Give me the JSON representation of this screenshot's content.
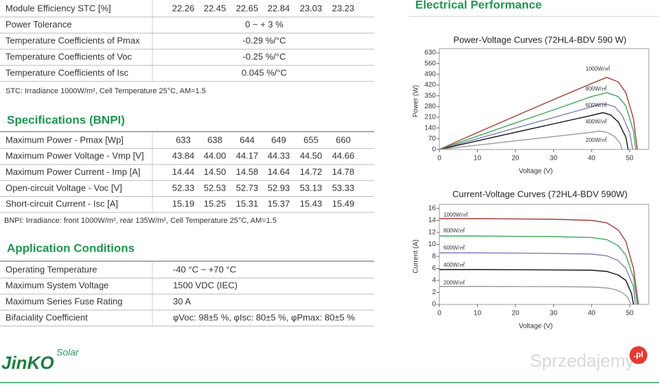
{
  "stc_table": {
    "rows": [
      [
        "Module Efficiency STC  [%]",
        "22.26",
        "22.45",
        "22.65",
        "22.84",
        "23.03",
        "23.23"
      ],
      [
        "Power Tolerance",
        "0 ~ + 3 %"
      ],
      [
        "Temperature Coefficients of Pmax",
        "-0.29 %/°C"
      ],
      [
        "Temperature Coefficients of Voc",
        "-0.25 %/°C"
      ],
      [
        "Temperature Coefficients of Isc",
        "0.045 %/°C"
      ]
    ],
    "note": "STC: Irradiance 1000W/m², Cell Temperature 25°C, AM=1.5"
  },
  "bnpi": {
    "title": "Specifications (BNPI)",
    "rows": [
      [
        "Maximum Power - Pmax  [Wp]",
        "633",
        "638",
        "644",
        "649",
        "655",
        "660"
      ],
      [
        "Maximum Power Voltage - Vmp  [V]",
        "43.84",
        "44.00",
        "44.17",
        "44.33",
        "44.50",
        "44.66"
      ],
      [
        "Maximum Power Current - Imp  [A]",
        "14.44",
        "14.50",
        "14.58",
        "14.64",
        "14.72",
        "14.78"
      ],
      [
        "Open-circuit Voltage - Voc  [V]",
        "52.33",
        "52.53",
        "52.73",
        "52.93",
        "53.13",
        "53.33"
      ],
      [
        "Short-circuit Current - Isc  [A]",
        "15.19",
        "15.25",
        "15.31",
        "15.37",
        "15.43",
        "15.49"
      ]
    ],
    "note": "BNPI: Irradiance: front 1000W/m², rear 135W/m², Cell Temperature 25°C, AM=1.5"
  },
  "application": {
    "title": "Application Conditions",
    "rows": [
      [
        "Operating Temperature",
        "-40 °C ~ +70 °C"
      ],
      [
        "Maximum System Voltage",
        "1500 VDC (IEC)"
      ],
      [
        "Maximum Series Fuse Rating",
        "30 A"
      ],
      [
        "Bifaciality Coefficient",
        "φVoc: 98±5 %, φIsc: 80±5 %, φPmax: 80±5 %"
      ]
    ]
  },
  "electrical": {
    "title": "Electrical Performance"
  },
  "chart_data": [
    {
      "type": "line",
      "title": "Power-Voltage Curves (72HL4-BDV 590 W)",
      "xlabel": "Voltage (V)",
      "ylabel": "Power (W)",
      "xlim": [
        0,
        55
      ],
      "xticks": [
        0,
        10,
        20,
        30,
        40,
        50
      ],
      "ylim": [
        0,
        630
      ],
      "yticks": [
        0,
        70,
        140,
        210,
        280,
        350,
        420,
        490,
        560,
        630
      ],
      "series": [
        {
          "name": "1000W/㎡",
          "color": "#a33a35",
          "x": [
            0,
            10,
            20,
            30,
            40,
            44,
            47,
            49,
            51,
            52
          ],
          "values": [
            0,
            110,
            218,
            325,
            430,
            470,
            440,
            370,
            200,
            0
          ]
        },
        {
          "name": "800W/㎡",
          "color": "#3ea95a",
          "x": [
            0,
            10,
            20,
            30,
            40,
            44,
            47,
            49,
            51,
            51.6
          ],
          "values": [
            0,
            87,
            173,
            258,
            345,
            370,
            345,
            285,
            120,
            0
          ]
        },
        {
          "name": "600W/㎡",
          "color": "#7d80b8",
          "x": [
            0,
            10,
            20,
            30,
            40,
            43,
            46,
            48,
            50,
            50.8
          ],
          "values": [
            0,
            70,
            140,
            208,
            278,
            300,
            280,
            225,
            110,
            0
          ]
        },
        {
          "name": "400W/㎡",
          "color": "#111111",
          "x": [
            0,
            10,
            20,
            30,
            40,
            43,
            45,
            47,
            49,
            49.6
          ],
          "values": [
            0,
            56,
            112,
            167,
            222,
            240,
            225,
            180,
            80,
            0
          ]
        },
        {
          "name": "200W/㎡",
          "color": "#9a9a9a",
          "x": [
            0,
            10,
            20,
            30,
            40,
            42,
            44,
            46,
            47.5,
            48
          ],
          "values": [
            0,
            28,
            56,
            84,
            112,
            120,
            112,
            85,
            40,
            0
          ]
        }
      ]
    },
    {
      "type": "line",
      "title": "Current-Voltage Curves (72HL4-BDV 590W)",
      "xlabel": "Voltage (V)",
      "ylabel": "Current (A)",
      "xlim": [
        0,
        55
      ],
      "xticks": [
        0,
        10,
        20,
        30,
        40,
        50
      ],
      "ylim": [
        0,
        16
      ],
      "yticks": [
        0,
        2,
        4,
        6,
        8,
        10,
        12,
        14,
        16
      ],
      "series": [
        {
          "name": "1000W/㎡",
          "color": "#a33a35",
          "x": [
            0,
            10,
            20,
            30,
            40,
            44,
            47,
            49,
            51,
            52.3
          ],
          "values": [
            14.3,
            14.3,
            14.25,
            14.2,
            14.0,
            13.6,
            12.4,
            10.5,
            6,
            0
          ]
        },
        {
          "name": "800W/㎡",
          "color": "#3ea95a",
          "x": [
            0,
            10,
            20,
            30,
            40,
            44,
            47,
            49,
            51,
            52
          ],
          "values": [
            11.4,
            11.4,
            11.35,
            11.3,
            11.15,
            10.8,
            9.8,
            8.2,
            4.5,
            0
          ]
        },
        {
          "name": "600W/㎡",
          "color": "#7d80b8",
          "x": [
            0,
            10,
            20,
            30,
            40,
            44,
            47,
            49,
            51,
            51.5
          ],
          "values": [
            8.6,
            8.6,
            8.55,
            8.5,
            8.4,
            8.1,
            7.3,
            6,
            3,
            0
          ]
        },
        {
          "name": "400W/㎡",
          "color": "#111111",
          "x": [
            0,
            10,
            20,
            30,
            40,
            44,
            47,
            49,
            50.5,
            51
          ],
          "values": [
            5.8,
            5.8,
            5.78,
            5.75,
            5.7,
            5.5,
            4.9,
            4,
            1.8,
            0
          ]
        },
        {
          "name": "200W/㎡",
          "color": "#9a9a9a",
          "x": [
            0,
            10,
            20,
            30,
            40,
            44,
            46,
            48,
            49.5,
            50.3
          ],
          "values": [
            3,
            3,
            2.98,
            2.97,
            2.9,
            2.75,
            2.5,
            2,
            1.2,
            0
          ]
        }
      ]
    }
  ],
  "footer": {
    "logo": "JinKO",
    "logo_sub": "Solar",
    "watermark": "Sprzedajemy",
    "watermark_tld": ".pl"
  }
}
